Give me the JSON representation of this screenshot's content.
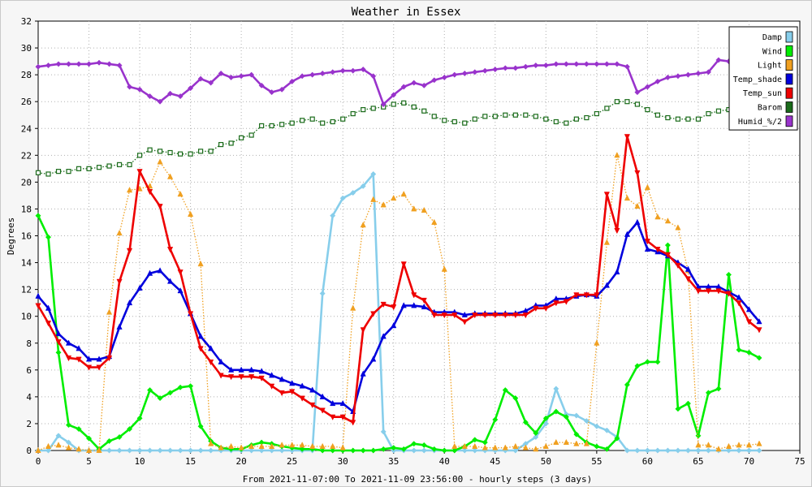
{
  "chart_data": {
    "type": "line",
    "title": "Weather in Essex",
    "xlabel": "From 2021-11-07:00 To 2021-11-09 23:56:00 - hourly steps (3 days)",
    "ylabel": "Degrees",
    "xlim": [
      0,
      75
    ],
    "ylim": [
      0,
      32
    ],
    "x_ticks": [
      0,
      5,
      10,
      15,
      20,
      25,
      30,
      35,
      40,
      45,
      50,
      55,
      60,
      65,
      70,
      75
    ],
    "y_ticks": [
      0,
      2,
      4,
      6,
      8,
      10,
      12,
      14,
      16,
      18,
      20,
      22,
      24,
      26,
      28,
      30,
      32
    ],
    "grid": true,
    "legend_position": "top-right",
    "series": [
      {
        "name": "Damp",
        "color": "#87ceeb",
        "style": "solid",
        "marker": "diamond",
        "values": [
          0,
          0,
          1.1,
          0.6,
          0,
          0,
          0,
          0,
          0,
          0,
          0,
          0,
          0,
          0,
          0,
          0,
          0,
          0,
          0,
          0,
          0,
          0,
          0,
          0,
          0,
          0,
          0,
          0,
          11.7,
          17.5,
          18.8,
          19.2,
          19.7,
          20.6,
          1.4,
          0,
          0,
          0,
          0,
          0,
          0,
          0,
          0,
          0,
          0,
          0,
          0,
          0,
          0.5,
          1,
          2,
          4.6,
          2.7,
          2.6,
          2.2,
          1.8,
          1.5,
          1,
          0,
          0,
          0,
          0,
          0,
          0,
          0,
          0,
          0,
          0,
          0,
          0,
          0,
          0
        ]
      },
      {
        "name": "Wind",
        "color": "#00ee00",
        "style": "solid",
        "marker": "diamond",
        "values": [
          17.5,
          15.9,
          7.3,
          1.9,
          1.6,
          0.9,
          0.1,
          0.7,
          1.0,
          1.6,
          2.4,
          4.5,
          3.9,
          4.3,
          4.7,
          4.8,
          1.8,
          0.7,
          0.2,
          0.1,
          0.1,
          0.4,
          0.6,
          0.5,
          0.3,
          0.2,
          0.1,
          0.1,
          0.0,
          0.0,
          0.0,
          0.0,
          0.0,
          0.0,
          0.1,
          0.2,
          0.1,
          0.5,
          0.4,
          0.1,
          0.0,
          0.0,
          0.3,
          0.8,
          0.6,
          2.3,
          4.5,
          3.9,
          2.1,
          1.3,
          2.4,
          2.9,
          2.5,
          1.2,
          0.6,
          0.3,
          0.1,
          0.9,
          4.9,
          6.3,
          6.6,
          6.6,
          15.3,
          3.1,
          3.5,
          1.1,
          4.3,
          4.6,
          13.1,
          7.5,
          7.3,
          6.9
        ]
      },
      {
        "name": "Light",
        "color": "#f0a020",
        "style": "dotted",
        "marker": "triangle",
        "values": [
          0,
          0.3,
          0.4,
          0.2,
          0.1,
          0,
          0,
          10.3,
          16.2,
          19.4,
          19.5,
          19.7,
          21.5,
          20.4,
          19.1,
          17.6,
          13.9,
          0.5,
          0.2,
          0.3,
          0.2,
          0.3,
          0.3,
          0.3,
          0.4,
          0.4,
          0.4,
          0.3,
          0.3,
          0.3,
          0.2,
          10.6,
          16.8,
          18.7,
          18.3,
          18.8,
          19.1,
          18,
          17.9,
          17,
          13.5,
          0.3,
          0.3,
          0.3,
          0.2,
          0.2,
          0.2,
          0.3,
          0.2,
          0.1,
          0.3,
          0.6,
          0.6,
          0.5,
          0.5,
          8.0,
          15.5,
          22.0,
          18.8,
          18.2,
          19.6,
          17.4,
          17.1,
          16.6,
          13.4,
          0.4,
          0.4,
          0.1,
          0.3,
          0.4,
          0.4,
          0.5
        ]
      },
      {
        "name": "Temp_shade",
        "color": "#0000dd",
        "style": "solid",
        "marker": "triangle",
        "values": [
          11.5,
          10.6,
          8.7,
          8.0,
          7.6,
          6.8,
          6.8,
          7.0,
          9.2,
          11.0,
          12.1,
          13.2,
          13.4,
          12.6,
          11.9,
          10.2,
          8.5,
          7.6,
          6.6,
          6.0,
          6.0,
          6.0,
          5.9,
          5.6,
          5.3,
          5.0,
          4.8,
          4.5,
          4.0,
          3.5,
          3.5,
          2.9,
          5.7,
          6.8,
          8.5,
          9.3,
          10.8,
          10.8,
          10.7,
          10.3,
          10.3,
          10.3,
          10.1,
          10.2,
          10.2,
          10.2,
          10.2,
          10.2,
          10.4,
          10.8,
          10.8,
          11.3,
          11.3,
          11.5,
          11.6,
          11.5,
          12.3,
          13.3,
          16.1,
          17.0,
          15.0,
          14.8,
          14.5,
          14.0,
          13.5,
          12.2,
          12.2,
          12.2,
          11.8,
          11.4,
          10.5,
          9.6
        ]
      },
      {
        "name": "Temp_sun",
        "color": "#ee0000",
        "style": "solid",
        "marker": "triangle-down",
        "values": [
          10.8,
          9.5,
          8.1,
          6.9,
          6.8,
          6.2,
          6.2,
          6.9,
          12.6,
          14.9,
          20.8,
          19.3,
          18.2,
          15.0,
          13.3,
          10.2,
          7.6,
          6.6,
          5.6,
          5.5,
          5.5,
          5.5,
          5.4,
          4.8,
          4.3,
          4.4,
          3.9,
          3.4,
          3.0,
          2.5,
          2.5,
          2.1,
          9.0,
          10.2,
          10.9,
          10.7,
          13.9,
          11.6,
          11.2,
          10.1,
          10.1,
          10.1,
          9.6,
          10.1,
          10.1,
          10.1,
          10.1,
          10.1,
          10.1,
          10.6,
          10.6,
          11.0,
          11.1,
          11.6,
          11.6,
          11.6,
          19.1,
          16.4,
          23.4,
          20.7,
          15.6,
          15.0,
          14.6,
          13.8,
          12.8,
          11.9,
          11.9,
          11.9,
          11.7,
          11.0,
          9.6,
          9.0
        ]
      },
      {
        "name": "Barom",
        "color": "#1a6b1a",
        "style": "dotted",
        "marker": "square",
        "values": [
          20.7,
          20.6,
          20.8,
          20.8,
          21.0,
          21.0,
          21.1,
          21.2,
          21.3,
          21.3,
          22.0,
          22.4,
          22.3,
          22.2,
          22.1,
          22.1,
          22.3,
          22.3,
          22.8,
          22.9,
          23.3,
          23.5,
          24.2,
          24.2,
          24.3,
          24.4,
          24.6,
          24.7,
          24.4,
          24.5,
          24.7,
          25.1,
          25.4,
          25.5,
          25.6,
          25.8,
          25.9,
          25.6,
          25.3,
          24.9,
          24.6,
          24.5,
          24.4,
          24.7,
          24.9,
          24.9,
          25.0,
          25.0,
          25.0,
          24.9,
          24.7,
          24.5,
          24.4,
          24.7,
          24.8,
          25.1,
          25.5,
          26.0,
          26.0,
          25.8,
          25.4,
          25.0,
          24.8,
          24.7,
          24.7,
          24.7,
          25.1,
          25.3,
          25.4,
          25.3,
          25.2,
          25.2
        ]
      },
      {
        "name": "Humid_%/2",
        "color": "#9933cc",
        "style": "solid",
        "marker": "diamond",
        "values": [
          28.6,
          28.7,
          28.8,
          28.8,
          28.8,
          28.8,
          28.9,
          28.8,
          28.7,
          27.1,
          26.9,
          26.4,
          26.0,
          26.6,
          26.4,
          27.0,
          27.7,
          27.4,
          28.1,
          27.8,
          27.9,
          28.0,
          27.2,
          26.7,
          26.9,
          27.5,
          27.9,
          28.0,
          28.1,
          28.2,
          28.3,
          28.3,
          28.4,
          27.9,
          25.8,
          26.5,
          27.1,
          27.4,
          27.2,
          27.6,
          27.8,
          28.0,
          28.1,
          28.2,
          28.3,
          28.4,
          28.5,
          28.5,
          28.6,
          28.7,
          28.7,
          28.8,
          28.8,
          28.8,
          28.8,
          28.8,
          28.8,
          28.8,
          28.6,
          26.7,
          27.1,
          27.5,
          27.8,
          27.9,
          28.0,
          28.1,
          28.2,
          29.1,
          29.0,
          29.0,
          29.0,
          29.0
        ]
      }
    ]
  }
}
